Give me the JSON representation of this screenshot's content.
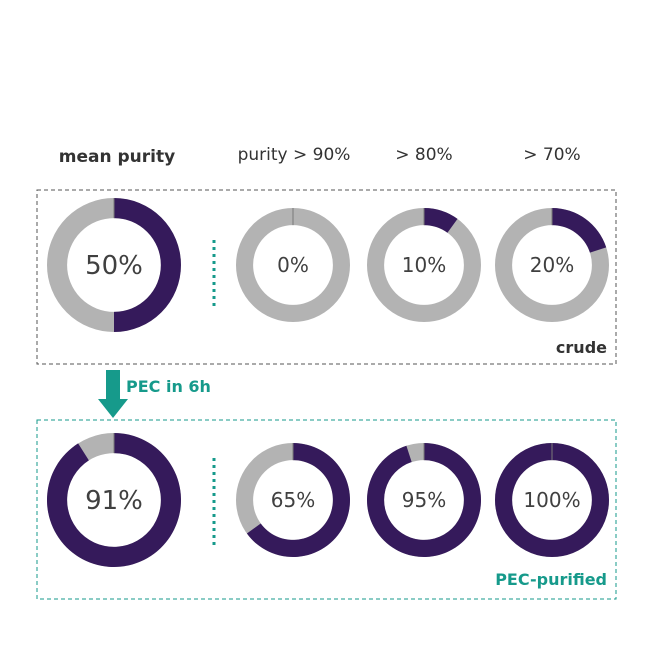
{
  "colors": {
    "filled": "#351a5b",
    "unfilled": "#b3b3b3",
    "accent": "#169a8b",
    "frame_crude": "#555555",
    "text": "#404040"
  },
  "chart_data": {
    "type": "pie",
    "headers": [
      "mean purity",
      "purity > 90%",
      "> 80%",
      "> 70%"
    ],
    "arrow_label": "PEC in 6h",
    "panels": [
      {
        "label": "crude",
        "values": [
          50,
          0,
          10,
          20
        ],
        "value_labels": [
          "50%",
          "0%",
          "10%",
          "20%"
        ]
      },
      {
        "label": "PEC-purified",
        "values": [
          91,
          65,
          95,
          100
        ],
        "value_labels": [
          "91%",
          "65%",
          "95%",
          "100%"
        ]
      }
    ]
  }
}
